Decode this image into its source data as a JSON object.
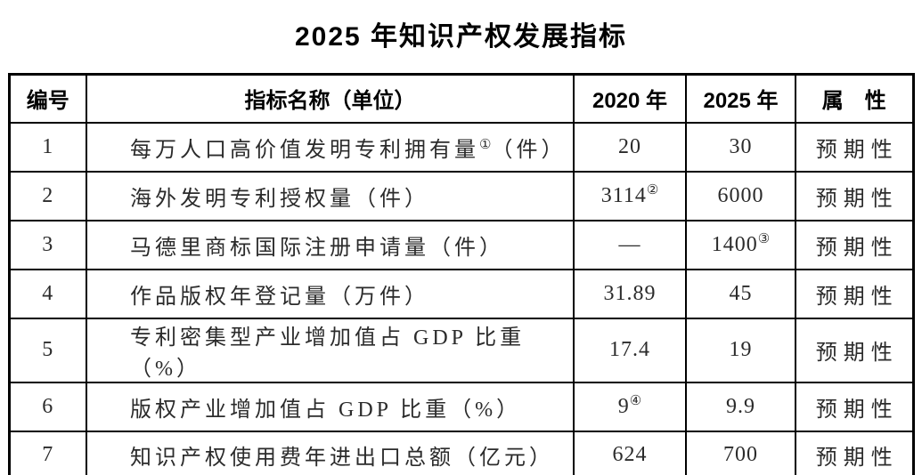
{
  "title": "2025 年知识产权发展指标",
  "table": {
    "headers": {
      "no": "编号",
      "name": "指标名称（单位）",
      "y2020": "2020 年",
      "y2025": "2025 年",
      "attr": "属　性"
    },
    "rows": [
      {
        "no": "1",
        "name": "每万人口高价值发明专利拥有量",
        "name_sup": "①",
        "unit": "（件）",
        "y2020": "20",
        "y2020_sup": "",
        "y2025": "30",
        "y2025_sup": "",
        "attr": "预期性"
      },
      {
        "no": "2",
        "name": "海外发明专利授权量",
        "name_sup": "",
        "unit": "（件）",
        "y2020": "3114",
        "y2020_sup": "②",
        "y2025": "6000",
        "y2025_sup": "",
        "attr": "预期性"
      },
      {
        "no": "3",
        "name": "马德里商标国际注册申请量",
        "name_sup": "",
        "unit": "（件）",
        "y2020": "—",
        "y2020_sup": "",
        "y2025": "1400",
        "y2025_sup": "③",
        "attr": "预期性"
      },
      {
        "no": "4",
        "name": "作品版权年登记量",
        "name_sup": "",
        "unit": "（万件）",
        "y2020": "31.89",
        "y2020_sup": "",
        "y2025": "45",
        "y2025_sup": "",
        "attr": "预期性"
      },
      {
        "no": "5",
        "name": "专利密集型产业增加值占 GDP 比重",
        "name_sup": "",
        "unit": "（%）",
        "y2020": "17.4",
        "y2020_sup": "",
        "y2025": "19",
        "y2025_sup": "",
        "attr": "预期性"
      },
      {
        "no": "6",
        "name": "版权产业增加值占 GDP 比重",
        "name_sup": "",
        "unit": "（%）",
        "y2020": "9",
        "y2020_sup": "④",
        "y2025": "9.9",
        "y2025_sup": "",
        "attr": "预期性"
      },
      {
        "no": "7",
        "name": "知识产权使用费年进出口总额",
        "name_sup": "",
        "unit": "（亿元）",
        "y2020": "624",
        "y2020_sup": "",
        "y2025": "700",
        "y2025_sup": "",
        "attr": "预期性"
      }
    ]
  }
}
